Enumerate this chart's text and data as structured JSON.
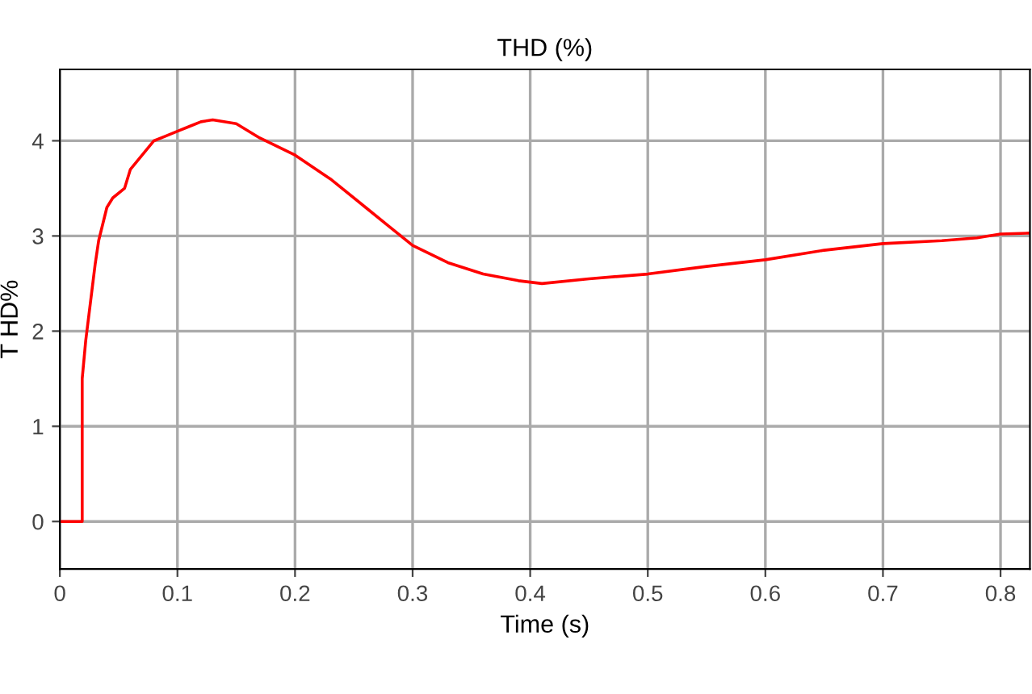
{
  "chart_data": {
    "type": "line",
    "title": "THD (%)",
    "xlabel": "Time (s)",
    "ylabel": "T HD%",
    "xlim": [
      0,
      0.825
    ],
    "ylim": [
      -0.5,
      4.75
    ],
    "xticks": [
      0,
      0.1,
      0.2,
      0.3,
      0.4,
      0.5,
      0.6,
      0.7,
      0.8
    ],
    "yticks": [
      0,
      1,
      2,
      3,
      4
    ],
    "grid": true,
    "marker": "none",
    "line_style": "solid",
    "series": [
      {
        "color": "#ff0000",
        "x": [
          0,
          0.019,
          0.019,
          0.022,
          0.025,
          0.03,
          0.033,
          0.04,
          0.045,
          0.055,
          0.06,
          0.07,
          0.08,
          0.09,
          0.1,
          0.11,
          0.12,
          0.13,
          0.15,
          0.17,
          0.2,
          0.23,
          0.26,
          0.28,
          0.3,
          0.33,
          0.36,
          0.39,
          0.41,
          0.45,
          0.5,
          0.55,
          0.6,
          0.65,
          0.7,
          0.75,
          0.78,
          0.8,
          0.825
        ],
        "values": [
          0,
          0,
          1.5,
          1.9,
          2.2,
          2.7,
          2.95,
          3.3,
          3.4,
          3.5,
          3.7,
          3.85,
          4.0,
          4.05,
          4.1,
          4.15,
          4.2,
          4.22,
          4.18,
          4.03,
          3.85,
          3.6,
          3.3,
          3.1,
          2.9,
          2.72,
          2.6,
          2.53,
          2.5,
          2.55,
          2.6,
          2.68,
          2.75,
          2.85,
          2.92,
          2.95,
          2.98,
          3.02,
          3.03
        ]
      }
    ]
  }
}
